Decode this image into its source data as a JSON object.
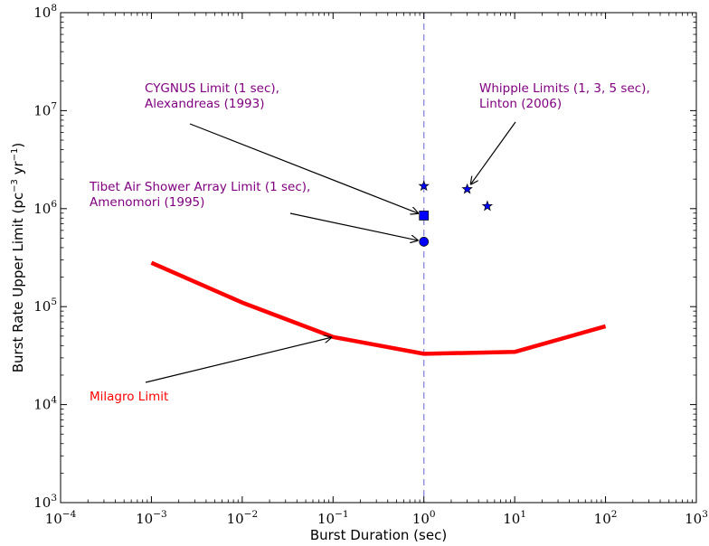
{
  "chart_data": {
    "type": "line",
    "x_scale": "log",
    "y_scale": "log",
    "xlim": [
      0.0001,
      1000
    ],
    "ylim": [
      1000,
      100000000
    ],
    "xlabel": "Burst Duration (sec)",
    "ylabel": {
      "text": "Burst Rate Upper Limit (pc",
      "sup1": "−3",
      "mid": " yr",
      "sup2": "−1",
      "end": ")"
    },
    "x_ticks": [
      {
        "base": "10",
        "exp": "−4",
        "value": 0.0001
      },
      {
        "base": "10",
        "exp": "−3",
        "value": 0.001
      },
      {
        "base": "10",
        "exp": "−2",
        "value": 0.01
      },
      {
        "base": "10",
        "exp": "−1",
        "value": 0.1
      },
      {
        "base": "10",
        "exp": "0",
        "value": 1
      },
      {
        "base": "10",
        "exp": "1",
        "value": 10
      },
      {
        "base": "10",
        "exp": "2",
        "value": 100
      },
      {
        "base": "10",
        "exp": "3",
        "value": 1000
      }
    ],
    "y_ticks": [
      {
        "base": "10",
        "exp": "3",
        "value": 1000
      },
      {
        "base": "10",
        "exp": "4",
        "value": 10000
      },
      {
        "base": "10",
        "exp": "5",
        "value": 100000
      },
      {
        "base": "10",
        "exp": "6",
        "value": 1000000
      },
      {
        "base": "10",
        "exp": "7",
        "value": 10000000
      },
      {
        "base": "10",
        "exp": "8",
        "value": 100000000
      }
    ],
    "grid": false,
    "series": [
      {
        "color": "#ff0000",
        "style": "thick-line",
        "points": [
          {
            "x": 0.001,
            "y": 280000
          },
          {
            "x": 0.01,
            "y": 110000
          },
          {
            "x": 0.1,
            "y": 49000
          },
          {
            "x": 1,
            "y": 33000
          },
          {
            "x": 10,
            "y": 34500
          },
          {
            "x": 100,
            "y": 63000
          }
        ]
      },
      {
        "color": "#0000ff",
        "marker": "star",
        "points": [
          {
            "x": 1,
            "y": 1700000
          },
          {
            "x": 3,
            "y": 1580000
          },
          {
            "x": 5,
            "y": 1060000
          }
        ]
      },
      {
        "color": "#0000ff",
        "marker": "square",
        "points": [
          {
            "x": 1,
            "y": 850000
          }
        ]
      },
      {
        "color": "#0000ff",
        "marker": "circle",
        "points": [
          {
            "x": 1,
            "y": 460000
          }
        ]
      }
    ],
    "reference_line": {
      "x": 1,
      "color": "#8888dd",
      "style": "dashed"
    },
    "annotations": [
      {
        "name": "annotation-cygnus",
        "lines": [
          "CYGNUS Limit (1 sec),",
          "Alexandreas (1993)"
        ],
        "color": "#800080",
        "arrow_to": {
          "x": 1,
          "y": 850000
        }
      },
      {
        "name": "annotation-whipple",
        "lines": [
          "Whipple Limits (1, 3, 5 sec),",
          "Linton (2006)"
        ],
        "color": "#800080",
        "arrow_to": {
          "x": 3,
          "y": 1580000
        }
      },
      {
        "name": "annotation-tibet",
        "lines": [
          "Tibet Air Shower Array Limit (1 sec),",
          "Amenomori (1995)"
        ],
        "color": "#800080",
        "arrow_to": {
          "x": 1,
          "y": 460000
        }
      },
      {
        "name": "annotation-milagro",
        "lines": [
          "Milagro Limit"
        ],
        "color": "#ff0000",
        "arrow_to": {
          "x": 0.1,
          "y": 49000
        }
      }
    ]
  }
}
